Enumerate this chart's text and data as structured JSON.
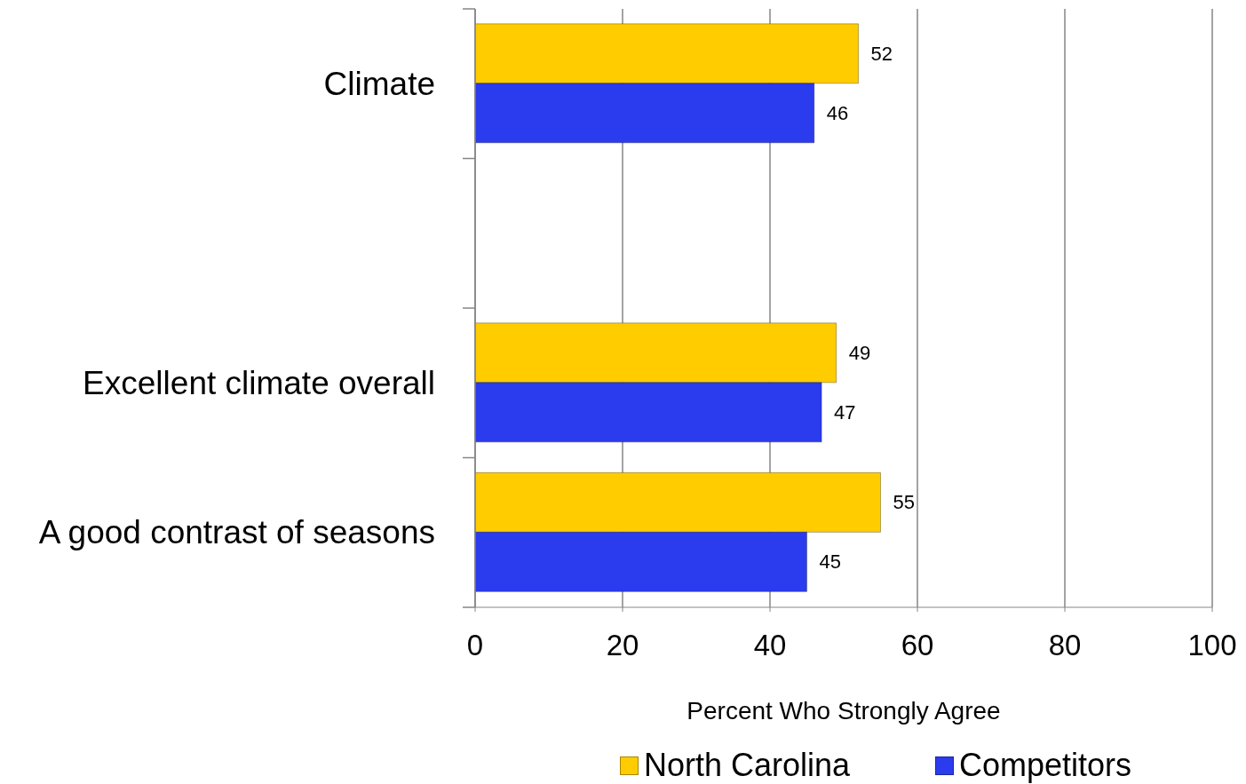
{
  "chart_data": {
    "type": "bar",
    "orientation": "horizontal",
    "categories": [
      "Climate",
      null,
      "Excellent climate overall",
      "A good contrast of seasons"
    ],
    "series": [
      {
        "name": "North Carolina",
        "color": "#ffcc00",
        "values": [
          52,
          null,
          49,
          55
        ]
      },
      {
        "name": "Competitors",
        "color": "#2b3bee",
        "values": [
          46,
          null,
          47,
          45
        ]
      }
    ],
    "xlim": [
      0,
      100
    ],
    "xticks": [
      0,
      20,
      40,
      60,
      80,
      100
    ],
    "xlabel": "Percent Who Strongly Agree",
    "grid": "x",
    "legend": "bottom",
    "data_labels": true
  }
}
